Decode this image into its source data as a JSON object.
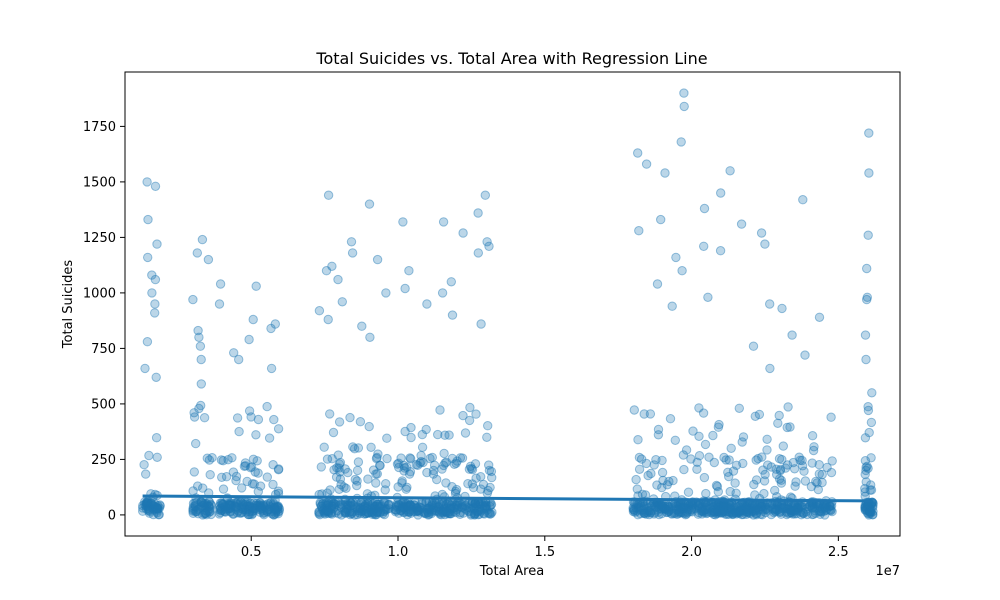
{
  "chart_data": {
    "type": "scatter",
    "title": "Total Suicides vs. Total Area with Regression Line",
    "xlabel": "Total Area",
    "ylabel": "Total Suicides",
    "x_offset_label": "1e7",
    "xlim": [
      700000,
      27100000
    ],
    "ylim": [
      -95,
      1995
    ],
    "x_ticks": [
      {
        "value": 5000000,
        "label": "0.5"
      },
      {
        "value": 10000000,
        "label": "1.0"
      },
      {
        "value": 15000000,
        "label": "1.5"
      },
      {
        "value": 20000000,
        "label": "2.0"
      },
      {
        "value": 25000000,
        "label": "2.5"
      }
    ],
    "y_ticks": [
      {
        "value": 0,
        "label": "0"
      },
      {
        "value": 250,
        "label": "250"
      },
      {
        "value": 500,
        "label": "500"
      },
      {
        "value": 750,
        "label": "750"
      },
      {
        "value": 1000,
        "label": "1000"
      },
      {
        "value": 1250,
        "label": "1250"
      },
      {
        "value": 1500,
        "label": "1500"
      },
      {
        "value": 1750,
        "label": "1750"
      }
    ],
    "grid": false,
    "marker_color": "#1f77b4",
    "marker_alpha": 0.3,
    "regression_line": {
      "color": "#1f77b4",
      "points": [
        [
          1300000,
          85
        ],
        [
          26100000,
          63
        ]
      ]
    },
    "x_clusters": [
      {
        "x_min": 1300000,
        "x_max": 1900000,
        "y_outliers": [
          1500,
          1480,
          1330,
          1220,
          1160,
          1080,
          1060,
          1000,
          950,
          910,
          780,
          660,
          620
        ]
      },
      {
        "x_min": 3000000,
        "x_max": 3700000,
        "y_outliers": [
          1240,
          1180,
          1150,
          970,
          830,
          800,
          760,
          700,
          590,
          460
        ]
      },
      {
        "x_min": 3900000,
        "x_max": 6000000,
        "y_outliers": [
          1040,
          1030,
          950,
          880,
          860,
          840,
          790,
          730,
          700,
          660
        ]
      },
      {
        "x_min": 7300000,
        "x_max": 9700000,
        "y_outliers": [
          1440,
          1400,
          1230,
          1180,
          1150,
          1120,
          1100,
          1060,
          1000,
          960,
          920,
          880,
          850,
          800
        ]
      },
      {
        "x_min": 9900000,
        "x_max": 13200000,
        "y_outliers": [
          1440,
          1360,
          1320,
          1320,
          1270,
          1230,
          1210,
          1180,
          1100,
          1050,
          1020,
          1000,
          950,
          900,
          860
        ]
      },
      {
        "x_min": 18000000,
        "x_max": 21000000,
        "y_outliers": [
          1900,
          1840,
          1680,
          1630,
          1580,
          1540,
          1450,
          1380,
          1330,
          1280,
          1210,
          1190,
          1160,
          1100,
          1040,
          980,
          940
        ]
      },
      {
        "x_min": 21000000,
        "x_max": 24800000,
        "y_outliers": [
          1550,
          1420,
          1310,
          1270,
          1220,
          950,
          930,
          890,
          810,
          760,
          720,
          660
        ]
      },
      {
        "x_min": 25900000,
        "x_max": 26200000,
        "y_outliers": [
          1720,
          1540,
          1260,
          1110,
          980,
          970,
          810,
          700,
          550
        ]
      }
    ]
  }
}
